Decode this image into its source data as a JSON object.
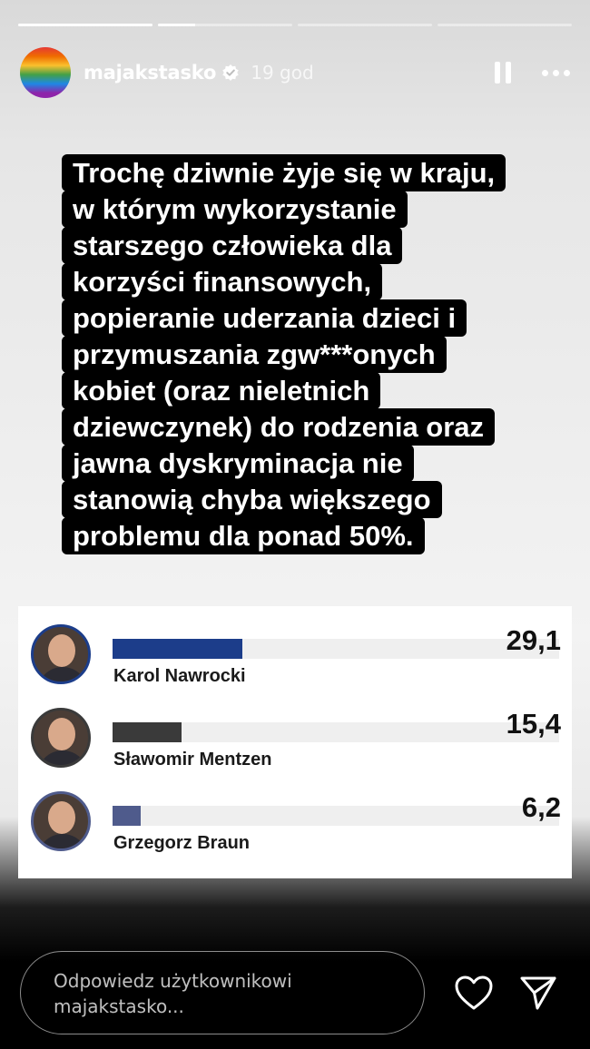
{
  "story": {
    "progress": [
      1,
      0.28,
      0,
      0
    ]
  },
  "header": {
    "username": "majakstasko",
    "time": "19 god"
  },
  "caption": {
    "lines": [
      "Trochę dziwnie żyje się w kraju,",
      "w którym wykorzystanie",
      "starszego człowieka dla",
      "korzyści finansowych,",
      "popieranie uderzania dzieci i",
      "przymuszania zgw***onych",
      "kobiet (oraz nieletnich",
      "dziewczynek) do rodzenia oraz",
      "jawna dyskryminacja nie",
      "stanowią chyba większego",
      "problemu dla ponad 50%."
    ]
  },
  "poll": {
    "max": 100,
    "candidates": [
      {
        "name": "Karol Nawrocki",
        "value_label": "29,1",
        "value": 29.1,
        "color": "#1c3d8a"
      },
      {
        "name": "Sławomir Mentzen",
        "value_label": "15,4",
        "value": 15.4,
        "color": "#3a3a3a"
      },
      {
        "name": "Grzegorz Braun",
        "value_label": "6,2",
        "value": 6.2,
        "color": "#4f5b8c"
      }
    ]
  },
  "reply": {
    "placeholder": "Odpowiedz użytkownikowi majakstasko..."
  },
  "icons": {
    "like": "heart-icon",
    "share": "send-icon",
    "pause": "pause-icon",
    "more": "more-icon"
  }
}
